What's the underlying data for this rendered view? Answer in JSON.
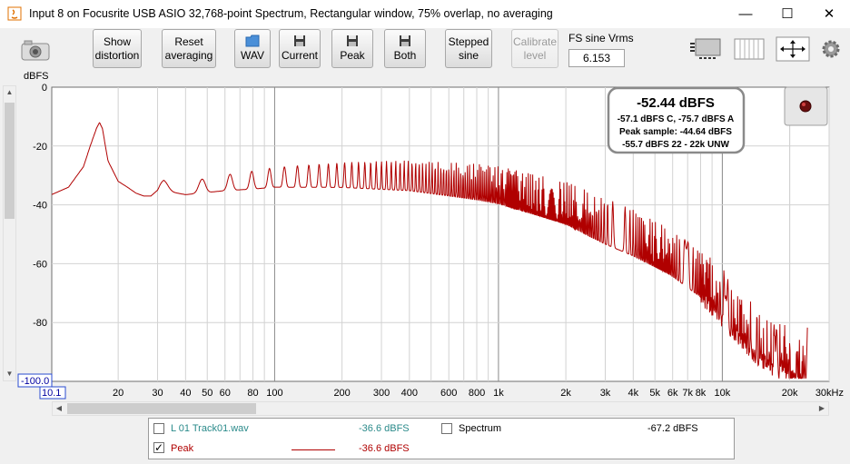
{
  "window": {
    "title": "Input 8 on Focusrite USB ASIO 32,768-point Spectrum, Rectangular window, 75% overlap, no averaging"
  },
  "toolbar": {
    "show_distortion": [
      "Show",
      "distortion"
    ],
    "reset_averaging": [
      "Reset",
      "averaging"
    ],
    "wav": "WAV",
    "current": "Current",
    "peak": "Peak",
    "both": "Both",
    "stepped_sine": [
      "Stepped",
      "sine"
    ],
    "calibrate_level": [
      "Calibrate",
      "level"
    ],
    "fs_sine_label": "FS sine Vrms",
    "fs_sine_value": "6.153"
  },
  "chart": {
    "y_unit": "dBFS",
    "y_ticks": [
      "0",
      "-20",
      "-40",
      "-60",
      "-80"
    ],
    "y_min_label": "-100.0",
    "x_min_label": "10.1",
    "x_ticks": [
      "20",
      "30",
      "40",
      "50",
      "60",
      "80",
      "100",
      "200",
      "300",
      "400",
      "600",
      "800",
      "1k",
      "2k",
      "3k",
      "4k",
      "5k",
      "6k",
      "7k",
      "8k",
      "10k",
      "20k",
      "30kHz"
    ],
    "readout": {
      "main": "-52.44 dBFS",
      "line1": "-57.1 dBFS C, -75.7 dBFS A",
      "line2": "Peak sample: -44.64 dBFS",
      "line3": "-55.7 dBFS 22 - 22k UNW"
    }
  },
  "chart_data": {
    "type": "line",
    "title": "",
    "xlabel": "",
    "ylabel": "dBFS",
    "x_scale": "log",
    "xlim": [
      10.1,
      30000
    ],
    "ylim": [
      -100,
      0
    ],
    "grid": true,
    "series": [
      {
        "name": "Peak",
        "color": "#b00000",
        "x": [
          10.1,
          12,
          14,
          15,
          16,
          16.5,
          17,
          18,
          20,
          22,
          24,
          26,
          28,
          30,
          32,
          40,
          60,
          80,
          100,
          200,
          400,
          800,
          1000,
          2000,
          3000,
          4000,
          6000,
          8000,
          10000,
          13000,
          16000,
          20000,
          22000,
          24000
        ],
        "y": [
          -36.5,
          -34,
          -27,
          -20,
          -14,
          -12,
          -14,
          -25,
          -32,
          -34,
          -36,
          -37,
          -37,
          -35,
          -33,
          -34,
          -32,
          -31,
          -30,
          -29,
          -29,
          -31,
          -32,
          -38,
          -44,
          -48,
          -55,
          -62,
          -70,
          -80,
          -86,
          -89,
          -90,
          -90
        ]
      }
    ]
  },
  "legend": {
    "l1_name": "L 01 Track01.wav",
    "l1_value": "-36.6 dBFS",
    "spectrum_name": "Spectrum",
    "spectrum_value": "-67.2 dBFS",
    "peak_name": "Peak",
    "peak_value": "-36.6 dBFS",
    "peak_checked": "✓"
  }
}
